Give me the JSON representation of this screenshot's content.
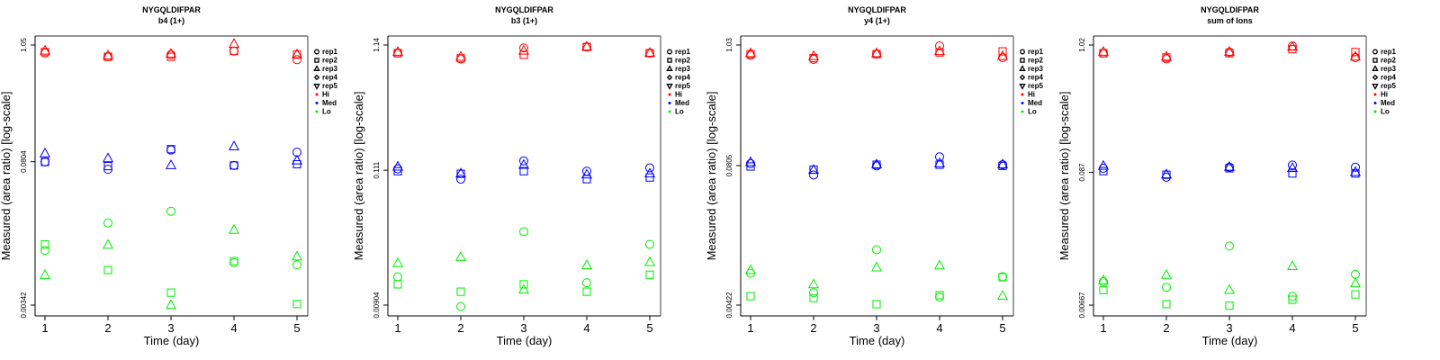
{
  "figure": {
    "background": "#ffffff"
  },
  "colors": {
    "Hi": "#ff0000",
    "Med": "#0000ff",
    "Lo": "#00ee00"
  },
  "legend": {
    "entries": [
      {
        "label": "rep1",
        "symbol": "circle"
      },
      {
        "label": "rep2",
        "symbol": "square"
      },
      {
        "label": "rep3",
        "symbol": "triangle-up"
      },
      {
        "label": "rep4",
        "symbol": "diamond"
      },
      {
        "label": "rep5",
        "symbol": "triangle-down"
      },
      {
        "label": "Hi",
        "symbol": "dot",
        "color": "#ff0000"
      },
      {
        "label": "Med",
        "symbol": "dot",
        "color": "#0000ff"
      },
      {
        "label": "Lo",
        "symbol": "dot",
        "color": "#00ee00"
      }
    ],
    "placement": "right"
  },
  "chart_data": [
    {
      "type": "scatter",
      "title": "NYGQLDIFPAR",
      "subtitle": "b4 (1+)",
      "xlabel": "Time (day)",
      "ylabel": "Measured (area ratio) [log-scale]",
      "yscale": "log",
      "x": [
        1,
        2,
        3,
        4,
        5
      ],
      "xticks": [
        "1",
        "2",
        "3",
        "4",
        "5"
      ],
      "yticks": [
        {
          "value": 1.05,
          "label": "1.05"
        },
        {
          "value": 0.0804,
          "label": "0.0804"
        },
        {
          "value": 0.00342,
          "label": "0.00342"
        }
      ],
      "ylim": [
        0.0028,
        1.3
      ],
      "grid": false,
      "series": [
        {
          "name": "Hi rep1",
          "level": "Hi",
          "rep": "rep1",
          "values": [
            0.88,
            0.81,
            0.85,
            0.92,
            0.76
          ]
        },
        {
          "name": "Hi rep2",
          "level": "Hi",
          "rep": "rep2",
          "values": [
            0.9,
            0.81,
            0.81,
            0.92,
            0.85
          ]
        },
        {
          "name": "Hi rep3",
          "level": "Hi",
          "rep": "rep3",
          "values": [
            0.92,
            0.83,
            0.86,
            1.07,
            0.85
          ]
        },
        {
          "name": "Med rep1",
          "level": "Med",
          "rep": "rep1",
          "values": [
            0.08,
            0.068,
            0.104,
            0.074,
            0.099
          ]
        },
        {
          "name": "Med rep2",
          "level": "Med",
          "rep": "rep2",
          "values": [
            0.08,
            0.073,
            0.106,
            0.074,
            0.076
          ]
        },
        {
          "name": "Med rep3",
          "level": "Med",
          "rep": "rep3",
          "values": [
            0.096,
            0.086,
            0.074,
            0.112,
            0.082
          ]
        },
        {
          "name": "Lo rep1",
          "level": "Lo",
          "rep": "rep1",
          "values": [
            0.0114,
            0.0209,
            0.027,
            0.0087,
            0.0083
          ]
        },
        {
          "name": "Lo rep2",
          "level": "Lo",
          "rep": "rep2",
          "values": [
            0.013,
            0.0074,
            0.0045,
            0.009,
            0.0035
          ]
        },
        {
          "name": "Lo rep3",
          "level": "Lo",
          "rep": "rep3",
          "values": [
            0.0066,
            0.0128,
            0.0034,
            0.0178,
            0.0099
          ]
        }
      ]
    },
    {
      "type": "scatter",
      "title": "NYGQLDIFPAR",
      "subtitle": "b3 (1+)",
      "xlabel": "Time (day)",
      "ylabel": "Measured (area ratio) [log-scale]",
      "yscale": "log",
      "x": [
        1,
        2,
        3,
        4,
        5
      ],
      "xticks": [
        "1",
        "2",
        "3",
        "4",
        "5"
      ],
      "yticks": [
        {
          "value": 1.14,
          "label": "1.14"
        },
        {
          "value": 0.111,
          "label": "0.111"
        },
        {
          "value": 0.00904,
          "label": "0.00904"
        }
      ],
      "ylim": [
        0.0077,
        1.34
      ],
      "grid": false,
      "series": [
        {
          "name": "Hi rep1",
          "level": "Hi",
          "rep": "rep1",
          "values": [
            0.98,
            0.88,
            1.08,
            1.1,
            0.98
          ]
        },
        {
          "name": "Hi rep2",
          "level": "Hi",
          "rep": "rep2",
          "values": [
            0.98,
            0.89,
            0.95,
            1.1,
            0.98
          ]
        },
        {
          "name": "Hi rep3",
          "level": "Hi",
          "rep": "rep3",
          "values": [
            1.0,
            0.91,
            1.02,
            1.1,
            0.98
          ]
        },
        {
          "name": "Med rep1",
          "level": "Med",
          "rep": "rep1",
          "values": [
            0.114,
            0.094,
            0.132,
            0.109,
            0.116
          ]
        },
        {
          "name": "Med rep2",
          "level": "Med",
          "rep": "rep2",
          "values": [
            0.109,
            0.104,
            0.109,
            0.094,
            0.097
          ]
        },
        {
          "name": "Med rep3",
          "level": "Med",
          "rep": "rep3",
          "values": [
            0.118,
            0.104,
            0.122,
            0.102,
            0.104
          ]
        },
        {
          "name": "Lo rep1",
          "level": "Lo",
          "rep": "rep1",
          "values": [
            0.0153,
            0.0088,
            0.0354,
            0.0137,
            0.028
          ]
        },
        {
          "name": "Lo rep2",
          "level": "Lo",
          "rep": "rep2",
          "values": [
            0.0133,
            0.0116,
            0.0133,
            0.0116,
            0.0159
          ]
        },
        {
          "name": "Lo rep3",
          "level": "Lo",
          "rep": "rep3",
          "values": [
            0.0196,
            0.022,
            0.012,
            0.0189,
            0.02
          ]
        }
      ]
    },
    {
      "type": "scatter",
      "title": "NYGQLDIFPAR",
      "subtitle": "y4 (1+)",
      "xlabel": "Time (day)",
      "ylabel": "Measured (area ratio) [log-scale]",
      "yscale": "log",
      "x": [
        1,
        2,
        3,
        4,
        5
      ],
      "xticks": [
        "1",
        "2",
        "3",
        "4",
        "5"
      ],
      "yticks": [
        {
          "value": 1.03,
          "label": "1.03"
        },
        {
          "value": 0.0805,
          "label": "0.0805"
        },
        {
          "value": 0.00422,
          "label": "0.00422"
        }
      ],
      "ylim": [
        0.0035,
        1.26
      ],
      "grid": false,
      "series": [
        {
          "name": "Hi rep1",
          "level": "Hi",
          "rep": "rep1",
          "values": [
            0.83,
            0.76,
            0.85,
            1.01,
            0.79
          ]
        },
        {
          "name": "Hi rep2",
          "level": "Hi",
          "rep": "rep2",
          "values": [
            0.85,
            0.78,
            0.85,
            0.88,
            0.9
          ]
        },
        {
          "name": "Hi rep3",
          "level": "Hi",
          "rep": "rep3",
          "values": [
            0.86,
            0.81,
            0.86,
            0.9,
            0.81
          ]
        },
        {
          "name": "Med rep1",
          "level": "Med",
          "rep": "rep1",
          "values": [
            0.084,
            0.066,
            0.08,
            0.097,
            0.082
          ]
        },
        {
          "name": "Med rep2",
          "level": "Med",
          "rep": "rep2",
          "values": [
            0.079,
            0.074,
            0.082,
            0.082,
            0.08
          ]
        },
        {
          "name": "Med rep3",
          "level": "Med",
          "rep": "rep3",
          "values": [
            0.086,
            0.073,
            0.082,
            0.084,
            0.082
          ]
        },
        {
          "name": "Lo rep1",
          "level": "Lo",
          "rep": "rep1",
          "values": [
            0.0083,
            0.0055,
            0.0136,
            0.005,
            0.0077
          ]
        },
        {
          "name": "Lo rep2",
          "level": "Lo",
          "rep": "rep2",
          "values": [
            0.0051,
            0.0049,
            0.0043,
            0.0052,
            0.0076
          ]
        },
        {
          "name": "Lo rep3",
          "level": "Lo",
          "rep": "rep3",
          "values": [
            0.0088,
            0.0065,
            0.0093,
            0.0097,
            0.0051
          ]
        }
      ]
    },
    {
      "type": "scatter",
      "title": "NYGQLDIFPAR",
      "subtitle": "sum of Ions",
      "xlabel": "Time (day)",
      "ylabel": "Measured (area ratio) [log-scale]",
      "yscale": "log",
      "x": [
        1,
        2,
        3,
        4,
        5
      ],
      "xticks": [
        "1",
        "2",
        "3",
        "4",
        "5"
      ],
      "yticks": [
        {
          "value": 1.02,
          "label": "1.02"
        },
        {
          "value": 0.087,
          "label": "0.087"
        },
        {
          "value": 0.00667,
          "label": "0.00667"
        }
      ],
      "ylim": [
        0.0056,
        1.22
      ],
      "grid": false,
      "series": [
        {
          "name": "Hi rep1",
          "level": "Hi",
          "rep": "rep1",
          "values": [
            0.87,
            0.78,
            0.89,
            1.0,
            0.8
          ]
        },
        {
          "name": "Hi rep2",
          "level": "Hi",
          "rep": "rep2",
          "values": [
            0.87,
            0.8,
            0.87,
            0.94,
            0.89
          ]
        },
        {
          "name": "Hi rep3",
          "level": "Hi",
          "rep": "rep3",
          "values": [
            0.89,
            0.81,
            0.89,
            0.98,
            0.81
          ]
        },
        {
          "name": "Med rep1",
          "level": "Med",
          "rep": "rep1",
          "values": [
            0.094,
            0.079,
            0.096,
            0.1,
            0.096
          ]
        },
        {
          "name": "Med rep2",
          "level": "Med",
          "rep": "rep2",
          "values": [
            0.089,
            0.083,
            0.094,
            0.085,
            0.085
          ]
        },
        {
          "name": "Med rep3",
          "level": "Med",
          "rep": "rep3",
          "values": [
            0.098,
            0.083,
            0.096,
            0.094,
            0.087
          ]
        },
        {
          "name": "Lo rep1",
          "level": "Lo",
          "rep": "rep1",
          "values": [
            0.0105,
            0.0094,
            0.0209,
            0.0079,
            0.0121
          ]
        },
        {
          "name": "Lo rep2",
          "level": "Lo",
          "rep": "rep2",
          "values": [
            0.0089,
            0.0068,
            0.0066,
            0.0074,
            0.0082
          ]
        },
        {
          "name": "Lo rep3",
          "level": "Lo",
          "rep": "rep3",
          "values": [
            0.0107,
            0.0119,
            0.0089,
            0.0141,
            0.0101
          ]
        }
      ]
    }
  ]
}
